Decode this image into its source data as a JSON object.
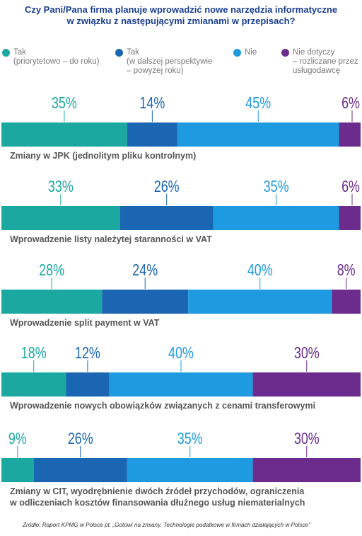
{
  "title": {
    "line1": "Czy Pani/Pana firma planuje wprowadzić nowe narzędzia informatyczne",
    "line2": "w związku z następującymi zmianami w przepisach?"
  },
  "colors": {
    "tak_priorytet": "#1ba8a0",
    "tak_dalsza": "#1a66b3",
    "nie": "#1e9ae0",
    "nie_dotyczy": "#6b2c8e"
  },
  "legend": [
    {
      "line1": "Tak",
      "line2": "(priorytetowo – do roku)",
      "line3": ""
    },
    {
      "line1": "Tak",
      "line2": "(w dalszej perspektywie",
      "line3": "– powyżej roku)"
    },
    {
      "line1": "Nie",
      "line2": "",
      "line3": ""
    },
    {
      "line1": "Nie dotyczy",
      "line2": "– rozliczane przez",
      "line3": "usługodawcę"
    }
  ],
  "chart_data": {
    "type": "bar",
    "stacked": true,
    "orientation": "horizontal",
    "value_suffix": "%",
    "series": [
      {
        "name": "Tak (priorytetowo – do roku)",
        "color": "#1ba8a0",
        "values": [
          35,
          33,
          28,
          18,
          9
        ]
      },
      {
        "name": "Tak (w dalszej perspektywie – powyżej roku)",
        "color": "#1a66b3",
        "values": [
          14,
          26,
          24,
          12,
          26
        ]
      },
      {
        "name": "Nie",
        "color": "#1e9ae0",
        "values": [
          45,
          35,
          40,
          40,
          35
        ]
      },
      {
        "name": "Nie dotyczy – rozliczane przez usługodawcę",
        "color": "#6b2c8e",
        "values": [
          6,
          6,
          8,
          30,
          30
        ]
      }
    ],
    "categories": [
      {
        "line1": "Zmiany w JPK (jednolitym pliku kontrolnym)",
        "line2": ""
      },
      {
        "line1": "Wprowadzenie listy należytej staranności w VAT",
        "line2": ""
      },
      {
        "line1": "Wprowadzenie split payment w VAT",
        "line2": ""
      },
      {
        "line1": "Wprowadzenie nowych obowiązków związanych z cenami transferowymi",
        "line2": ""
      },
      {
        "line1": "Zmiany w CIT, wyodrębnienie dwóch źródeł przychodów, ograniczenia",
        "line2": "w odliczeniach kosztów finansowania dłużnego usług niematerialnych"
      }
    ]
  },
  "source": "Źródło: Raport KPMG w Polsce pt. „Gotowi na zmiany. Technologie podatkowe w firmach działających w Polsce”"
}
